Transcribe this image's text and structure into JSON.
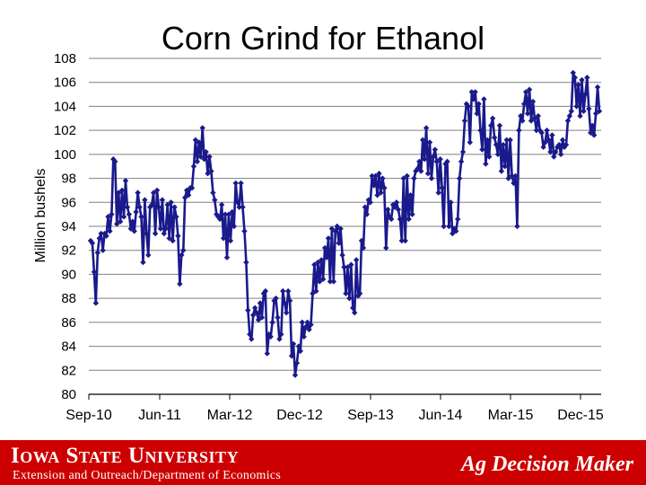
{
  "chart_data": {
    "type": "line",
    "title": "Corn Grind for Ethanol",
    "ylabel": "Million bushels",
    "xlabel": "",
    "ylim": [
      80,
      108
    ],
    "yticks": [
      80,
      82,
      84,
      86,
      88,
      90,
      92,
      94,
      96,
      98,
      100,
      102,
      104,
      106,
      108
    ],
    "xticks": [
      "Sep-10",
      "Jun-11",
      "Mar-12",
      "Dec-12",
      "Sep-13",
      "Jun-14",
      "Mar-15",
      "Dec-15"
    ],
    "grid": true,
    "series": [
      {
        "color": "#1a1a8c",
        "values": [
          92.8,
          92.6,
          90.2,
          87.6,
          91.8,
          93.0,
          93.4,
          92.0,
          93.4,
          93.2,
          94.8,
          93.6,
          95.0,
          99.6,
          99.4,
          94.2,
          96.8,
          94.4,
          97.0,
          94.8,
          97.8,
          95.6,
          95.0,
          93.8,
          94.4,
          93.6,
          95.2,
          96.8,
          95.6,
          94.8,
          91.0,
          96.2,
          93.4,
          91.6,
          95.6,
          95.8,
          96.8,
          93.4,
          97.0,
          95.6,
          93.8,
          96.2,
          93.4,
          93.8,
          95.8,
          93.0,
          96.0,
          92.8,
          95.6,
          94.8,
          93.2,
          89.2,
          91.6,
          92.0,
          96.4,
          97.0,
          96.6,
          97.2,
          97.2,
          99.0,
          101.2,
          99.4,
          101.0,
          99.8,
          102.2,
          99.6,
          100.2,
          98.4,
          99.8,
          98.6,
          96.8,
          96.2,
          95.0,
          94.8,
          94.6,
          95.8,
          93.0,
          95.0,
          91.4,
          95.0,
          92.8,
          95.2,
          94.0,
          97.6,
          96.0,
          95.6,
          97.6,
          95.6,
          93.6,
          91.0,
          87.0,
          85.0,
          84.6,
          86.6,
          87.2,
          86.8,
          86.2,
          87.6,
          86.4,
          88.4,
          88.6,
          83.4,
          85.0,
          84.8,
          86.0,
          87.8,
          88.0,
          86.4,
          84.6,
          85.0,
          88.6,
          87.6,
          86.8,
          88.6,
          87.8,
          83.2,
          84.2,
          81.6,
          82.6,
          84.0,
          83.6,
          86.0,
          84.8,
          85.6,
          86.0,
          85.4,
          85.8,
          88.4,
          90.8,
          88.6,
          91.0,
          89.4,
          91.2,
          89.6,
          92.2,
          91.4,
          93.0,
          89.4,
          93.8,
          89.4,
          93.6,
          94.0,
          92.6,
          93.8,
          91.6,
          90.6,
          88.4,
          90.6,
          88.0,
          90.8,
          87.2,
          86.8,
          91.2,
          88.2,
          88.4,
          92.8,
          92.2,
          95.6,
          95.0,
          96.2,
          96.0,
          98.2,
          97.4,
          98.2,
          96.6,
          98.4,
          96.8,
          98.0,
          97.2,
          92.2,
          95.4,
          94.8,
          94.6,
          95.8,
          95.6,
          96.0,
          95.4,
          94.6,
          92.8,
          98.0,
          92.8,
          98.2,
          94.6,
          96.6,
          95.0,
          98.0,
          98.6,
          98.8,
          99.4,
          98.6,
          101.2,
          99.6,
          102.2,
          98.4,
          101.0,
          98.0,
          99.8,
          100.4,
          99.4,
          96.8,
          99.6,
          97.2,
          94.0,
          99.2,
          99.4,
          94.0,
          96.0,
          93.4,
          93.8,
          93.6,
          94.6,
          98.0,
          99.4,
          100.2,
          102.8,
          104.2,
          104.0,
          101.0,
          105.2,
          104.6,
          105.2,
          103.4,
          104.2,
          102.0,
          100.4,
          104.6,
          99.2,
          101.2,
          99.8,
          102.4,
          103.0,
          101.4,
          100.8,
          100.0,
          102.4,
          98.6,
          100.8,
          99.0,
          101.2,
          98.0,
          101.2,
          98.2,
          97.6,
          98.2,
          94.0,
          102.0,
          103.2,
          102.8,
          104.2,
          105.2,
          103.4,
          105.4,
          102.8,
          104.4,
          103.0,
          102.0,
          103.2,
          102.0,
          101.8,
          100.6,
          101.0,
          102.0,
          101.2,
          100.2,
          101.6,
          99.8,
          100.2,
          100.6,
          100.8,
          100.0,
          101.2,
          100.6,
          100.8,
          102.8,
          103.2,
          103.6,
          106.8,
          106.4,
          104.0,
          105.8,
          103.2,
          106.2,
          103.6,
          105.0,
          106.4,
          103.8,
          101.8,
          102.4,
          101.6,
          103.4,
          105.6,
          103.6
        ]
      }
    ]
  },
  "footer": {
    "university": "Iowa State University",
    "extension": "Extension and Outreach/Department of Economics",
    "brand": "Ag Decision Maker"
  },
  "colors": {
    "footer_bg": "#cc0000",
    "series": "#1a1a8c",
    "grid": "#808080"
  }
}
